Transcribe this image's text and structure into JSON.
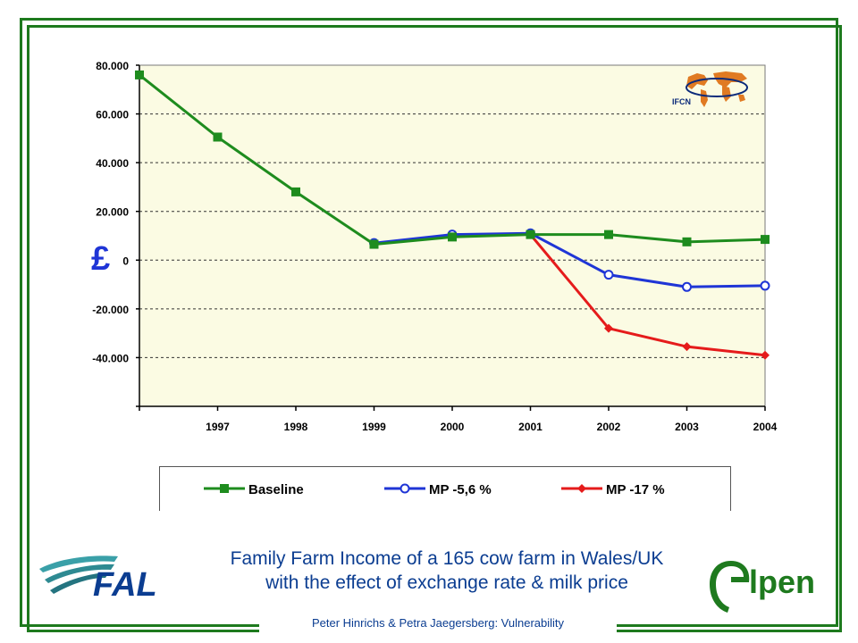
{
  "chart_data": {
    "type": "line",
    "categories": [
      "",
      "1997",
      "1998",
      "1999",
      "2000",
      "2001",
      "2002",
      "2003",
      "2004"
    ],
    "ylim": [
      -60000,
      80000
    ],
    "yticks": [
      80000,
      60000,
      40000,
      20000,
      0,
      -20000,
      -40000
    ],
    "ytick_labels": [
      "80.000",
      "60.000",
      "40.000",
      "20.000",
      "0",
      "-20.000",
      "-40.000"
    ],
    "ylabel": "£",
    "grid": true,
    "legend_position": "bottom",
    "series": [
      {
        "name": "Baseline",
        "color": "#1e8c1e",
        "marker": "square",
        "values": [
          76000,
          50500,
          28000,
          6500,
          9500,
          10500,
          10500,
          7500,
          8500
        ]
      },
      {
        "name": "MP -5,6 %",
        "color": "#1f35d6",
        "marker": "circle-open",
        "values": [
          null,
          null,
          null,
          7000,
          10500,
          11000,
          -6000,
          -11000,
          -10500
        ]
      },
      {
        "name": "MP -17 %",
        "color": "#e51b1b",
        "marker": "diamond",
        "values": [
          null,
          null,
          null,
          null,
          null,
          10500,
          -28000,
          -35500,
          -39000
        ]
      }
    ]
  },
  "ifcn_label": "IFCN",
  "caption": {
    "line1": "Family Farm Income of a 165 cow farm in Wales/UK",
    "line2": "with the effect of exchange rate & milk price"
  },
  "footer": "Peter Hinrichs & Petra Jaegersberg: Vulnerability",
  "logos": {
    "left": "FAL",
    "right": "lpen"
  }
}
